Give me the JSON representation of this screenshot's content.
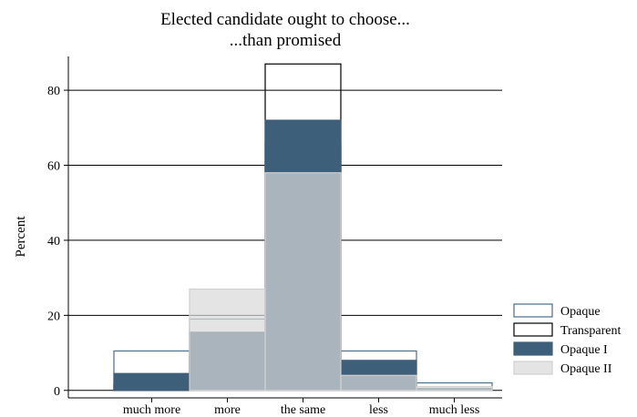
{
  "chart_data": {
    "type": "bar",
    "title_lines": [
      "Elected candidate ought to choose...",
      "...than promised"
    ],
    "xlabel": "",
    "ylabel": "Percent",
    "ylim": [
      -2,
      89
    ],
    "yticks": [
      0,
      20,
      40,
      60,
      80
    ],
    "categories": [
      "much more",
      "more",
      "the same",
      "less",
      "much less"
    ],
    "grid": true,
    "legend_position": "right",
    "series": [
      {
        "name": "Opaque",
        "values": [
          10.5,
          19,
          66,
          10.5,
          2
        ],
        "fill": "#ffffff",
        "stroke": "#4a6f86",
        "fill_opacity": 0
      },
      {
        "name": "Transparent",
        "values": [
          1.5,
          9,
          87,
          3,
          0
        ],
        "fill": "#ffffff",
        "stroke": "#000000",
        "fill_opacity": 0
      },
      {
        "name": "Opaque I",
        "values": [
          4.5,
          15.5,
          72,
          8,
          0.5
        ],
        "fill": "#3e5f7a",
        "stroke": "#3e5f7a",
        "fill_opacity": 1
      },
      {
        "name": "Opaque II",
        "values": [
          0,
          27,
          58,
          4,
          1
        ],
        "fill": "#d8d8d8",
        "stroke": "#d0d0d0",
        "fill_opacity": 0.7
      }
    ]
  }
}
